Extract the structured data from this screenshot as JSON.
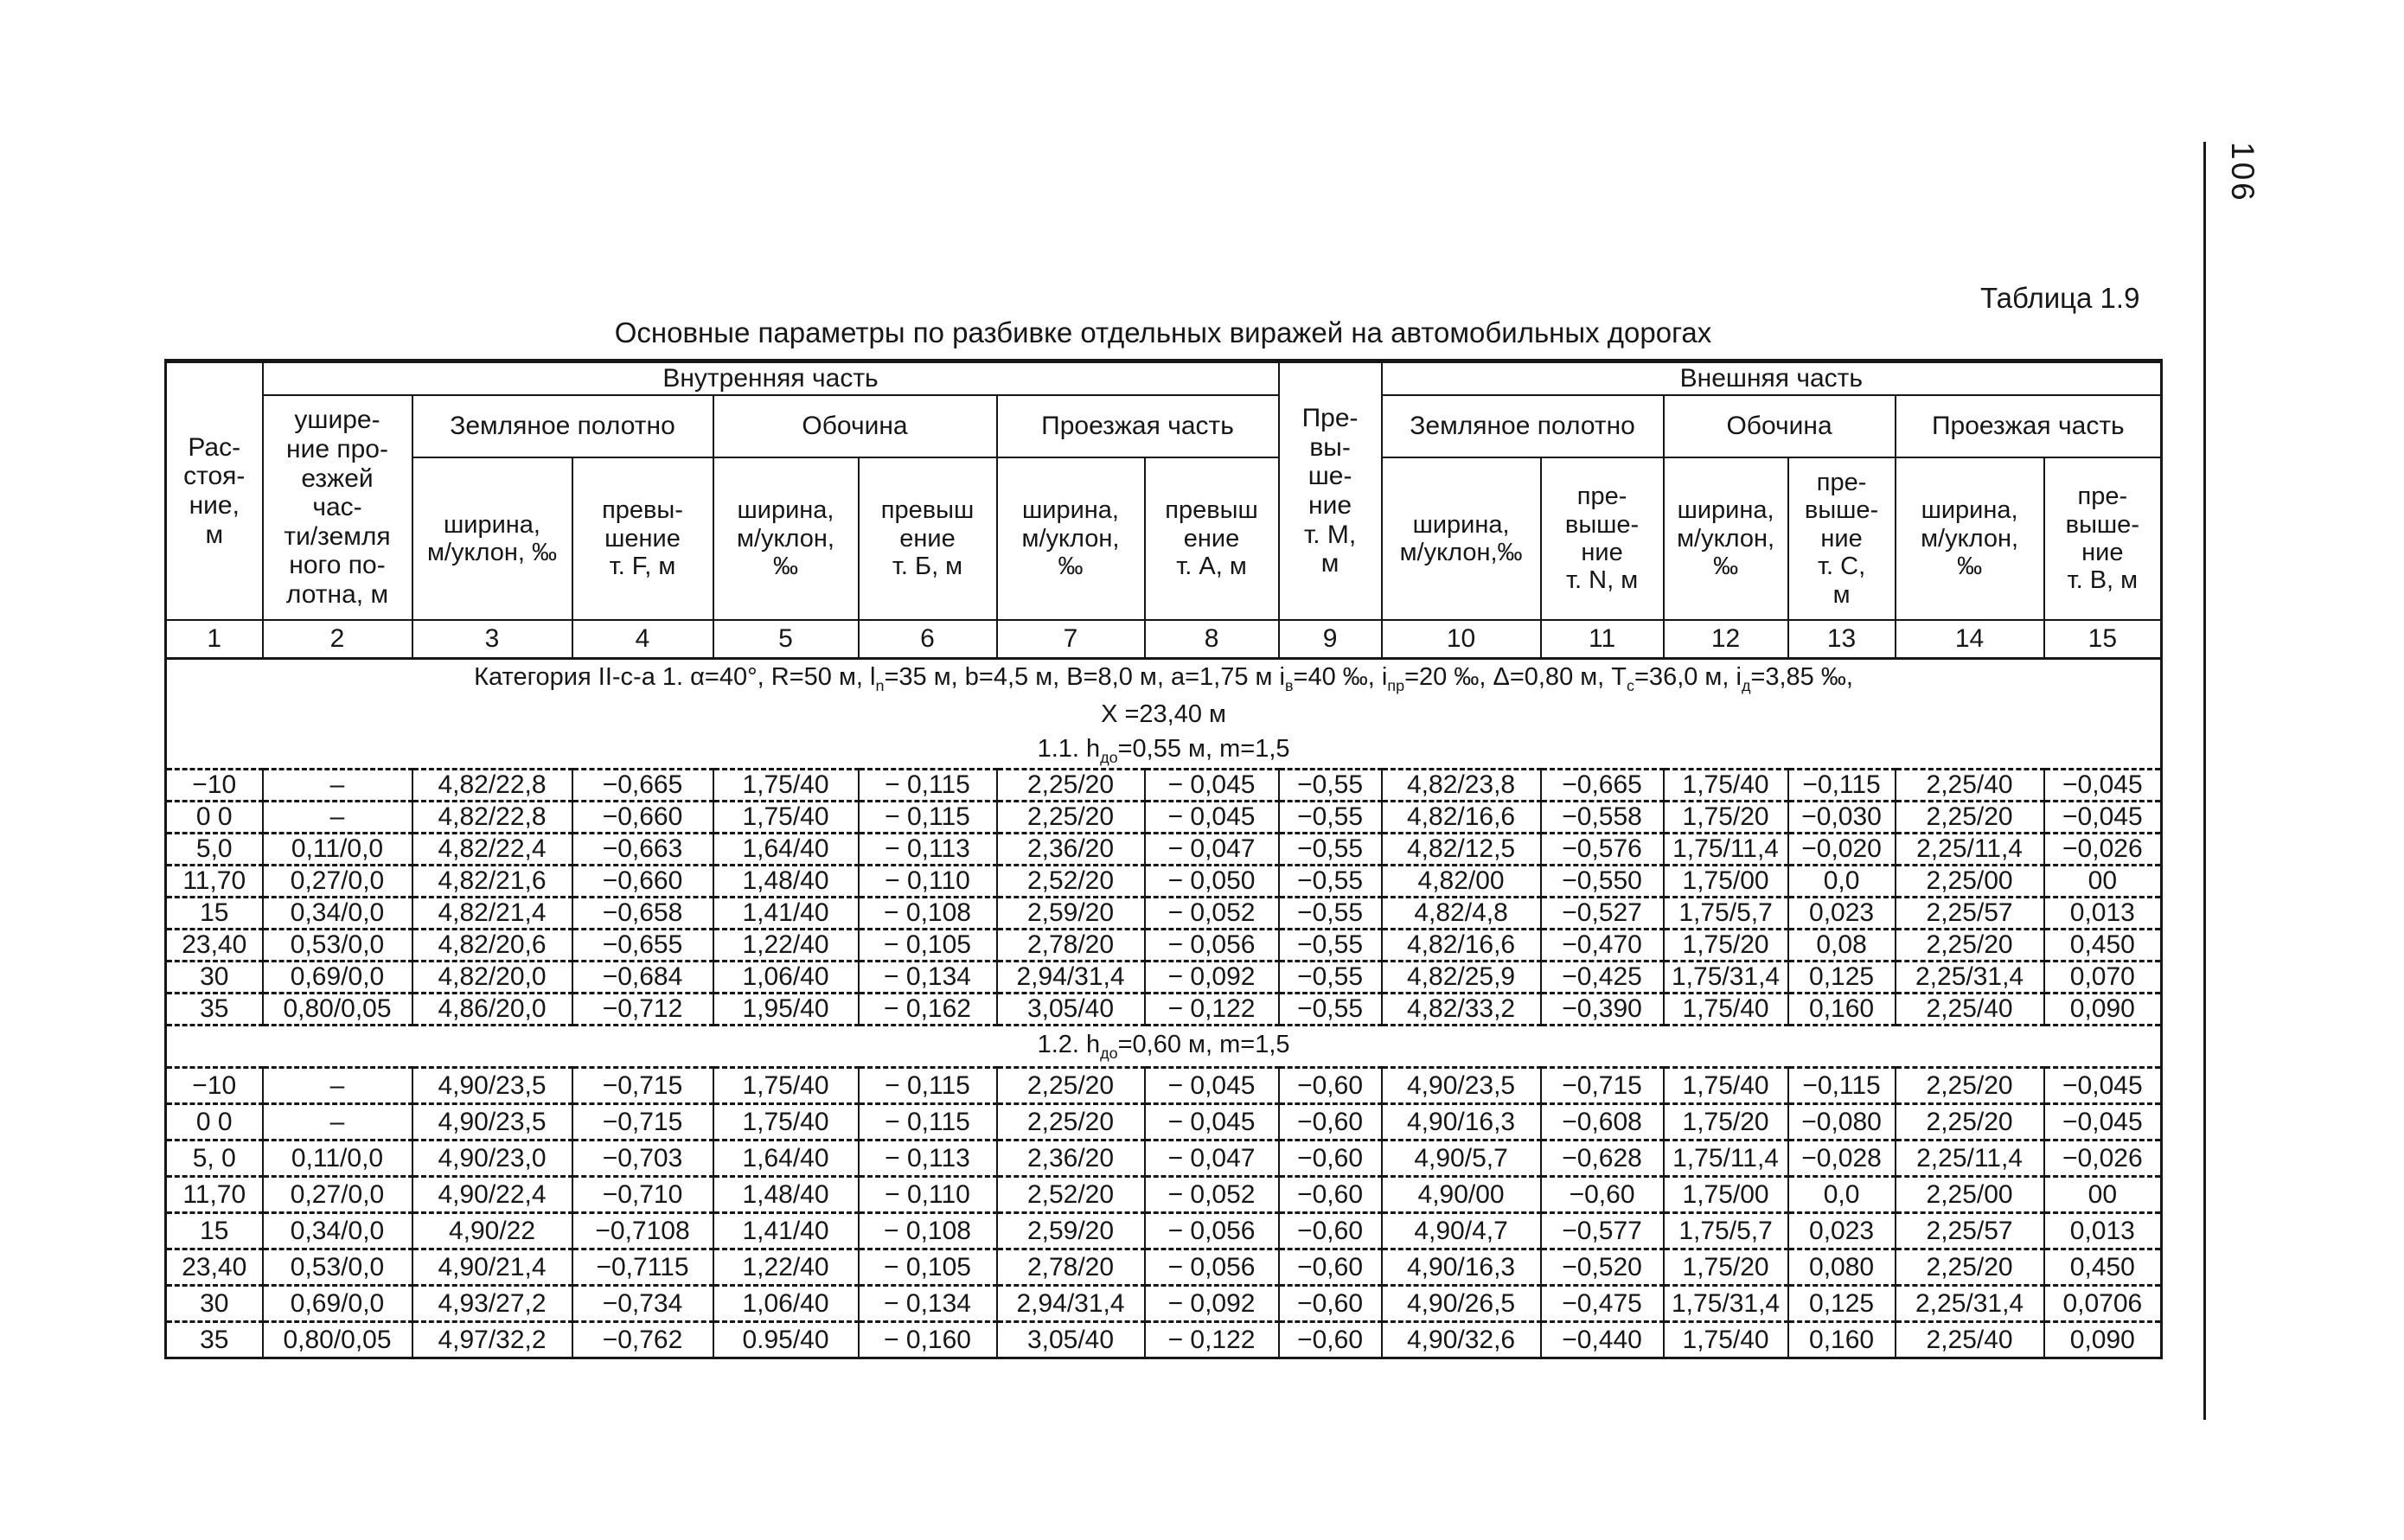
{
  "page_number": "106",
  "caption": "Таблица 1.9",
  "title": "Основные параметры по разбивке отдельных виражей на автомобильных дорогах",
  "table": {
    "header": {
      "col1": "Рас-\nстоя-\nние,\nм",
      "col2": "ушире-\nние про-\nезжей\nчас-\nти/земля\nного по-\nлотна, м",
      "col9": "Пре-\nвы-\nше-\nние\nт. М,\nм",
      "inner_part": "Внутренняя часть",
      "outer_part": "Внешняя часть",
      "groups": [
        "Земляное полотно",
        "Обочина",
        "Проезжая часть",
        "Земляное полотно",
        "Обочина",
        "Проезжая часть"
      ],
      "subs": [
        "ширина,\nм/уклон, ‰",
        "превы-\nшение\nт. F, м",
        "ширина,\nм/уклон,\n‰",
        "превыш\nение\nт. Б, м",
        "ширина,\nм/уклон,\n‰",
        "превыш\nение\nт. А, м",
        "ширина,\nм/уклон,‰",
        "пре-\nвыше-\nние\nт. N, м",
        "ширина,\nм/уклон,\n‰",
        "пре-\nвыше-\nние\nт. С,\nм",
        "ширина,\nм/уклон,\n‰",
        "пре-\nвыше-\nние\nт. В, м"
      ],
      "nums": [
        "1",
        "2",
        "3",
        "4",
        "5",
        "6",
        "7",
        "8",
        "9",
        "10",
        "11",
        "12",
        "13",
        "14",
        "15"
      ]
    },
    "note": {
      "line1_segments": [
        {
          "t": "Категория II-с-а  1. α=40°, R=50 м, l"
        },
        {
          "t": "n",
          "sub": true
        },
        {
          "t": "=35 м, b=4,5 м, В=8,0 м, а=1,75 м i"
        },
        {
          "t": "в",
          "sub": true
        },
        {
          "t": "=40 ‰, i"
        },
        {
          "t": "пр",
          "sub": true
        },
        {
          "t": "=20 ‰, Δ=0,80 м, Т"
        },
        {
          "t": "с",
          "sub": true
        },
        {
          "t": "=36,0 м, i"
        },
        {
          "t": "д",
          "sub": true
        },
        {
          "t": "=3,85 ‰,"
        }
      ],
      "line2": "Х =23,40 м",
      "line3_segments": [
        {
          "t": "1.1. h"
        },
        {
          "t": "до",
          "sub": true
        },
        {
          "t": "=0,55 м, m=1,5"
        }
      ]
    },
    "sections": [
      {
        "rows": [
          [
            "−10",
            "–",
            "4,82/22,8",
            "−0,665",
            "1,75/40",
            "− 0,115",
            "2,25/20",
            "− 0,045",
            "−0,55",
            "4,82/23,8",
            "−0,665",
            "1,75/40",
            "−0,115",
            "2,25/40",
            "−0,045"
          ],
          [
            "0 0",
            "–",
            "4,82/22,8",
            "−0,660",
            "1,75/40",
            "− 0,115",
            "2,25/20",
            "− 0,045",
            "−0,55",
            "4,82/16,6",
            "−0,558",
            "1,75/20",
            "−0,030",
            "2,25/20",
            "−0,045"
          ],
          [
            "5,0",
            "0,11/0,0",
            "4,82/22,4",
            "−0,663",
            "1,64/40",
            "− 0,113",
            "2,36/20",
            "− 0,047",
            "−0,55",
            "4,82/12,5",
            "−0,576",
            "1,75/11,4",
            "−0,020",
            "2,25/11,4",
            "−0,026"
          ],
          [
            "11,70",
            "0,27/0,0",
            "4,82/21,6",
            "−0,660",
            "1,48/40",
            "− 0,110",
            "2,52/20",
            "− 0,050",
            "−0,55",
            "4,82/00",
            "−0,550",
            "1,75/00",
            "0,0",
            "2,25/00",
            "00"
          ],
          [
            "15",
            "0,34/0,0",
            "4,82/21,4",
            "−0,658",
            "1,41/40",
            "− 0,108",
            "2,59/20",
            "− 0,052",
            "−0,55",
            "4,82/4,8",
            "−0,527",
            "1,75/5,7",
            "0,023",
            "2,25/57",
            "0,013"
          ],
          [
            "23,40",
            "0,53/0,0",
            "4,82/20,6",
            "−0,655",
            "1,22/40",
            "− 0,105",
            "2,78/20",
            "− 0,056",
            "−0,55",
            "4,82/16,6",
            "−0,470",
            "1,75/20",
            "0,08",
            "2,25/20",
            "0,450"
          ],
          [
            "30",
            "0,69/0,0",
            "4,82/20,0",
            "−0,684",
            "1,06/40",
            "− 0,134",
            "2,94/31,4",
            "− 0,092",
            "−0,55",
            "4,82/25,9",
            "−0,425",
            "1,75/31,4",
            "0,125",
            "2,25/31,4",
            "0,070"
          ],
          [
            "35",
            "0,80/0,05",
            "4,86/20,0",
            "−0,712",
            "1,95/40",
            "− 0,162",
            "3,05/40",
            "− 0,122",
            "−0,55",
            "4,82/33,2",
            "−0,390",
            "1,75/40",
            "0,160",
            "2,25/40",
            "0,090"
          ]
        ]
      },
      {
        "title_segments": [
          {
            "t": "1.2. h"
          },
          {
            "t": "до",
            "sub": true
          },
          {
            "t": "=0,60 м, m=1,5"
          }
        ],
        "rows": [
          [
            "−10",
            "–",
            "4,90/23,5",
            "−0,715",
            "1,75/40",
            "− 0,115",
            "2,25/20",
            "− 0,045",
            "−0,60",
            "4,90/23,5",
            "−0,715",
            "1,75/40",
            "−0,115",
            "2,25/20",
            "−0,045"
          ],
          [
            "0 0",
            "–",
            "4,90/23,5",
            "−0,715",
            "1,75/40",
            "− 0,115",
            "2,25/20",
            "− 0,045",
            "−0,60",
            "4,90/16,3",
            "−0,608",
            "1,75/20",
            "−0,080",
            "2,25/20",
            "−0,045"
          ],
          [
            "5, 0",
            "0,11/0,0",
            "4,90/23,0",
            "−0,703",
            "1,64/40",
            "− 0,113",
            "2,36/20",
            "− 0,047",
            "−0,60",
            "4,90/5,7",
            "−0,628",
            "1,75/11,4",
            "−0,028",
            "2,25/11,4",
            "−0,026"
          ],
          [
            "11,70",
            "0,27/0,0",
            "4,90/22,4",
            "−0,710",
            "1,48/40",
            "− 0,110",
            "2,52/20",
            "− 0,052",
            "−0,60",
            "4,90/00",
            "−0,60",
            "1,75/00",
            "0,0",
            "2,25/00",
            "00"
          ],
          [
            "15",
            "0,34/0,0",
            "4,90/22",
            "−0,7108",
            "1,41/40",
            "− 0,108",
            "2,59/20",
            "− 0,056",
            "−0,60",
            "4,90/4,7",
            "−0,577",
            "1,75/5,7",
            "0,023",
            "2,25/57",
            "0,013"
          ],
          [
            "23,40",
            "0,53/0,0",
            "4,90/21,4",
            "−0,7115",
            "1,22/40",
            "− 0,105",
            "2,78/20",
            "− 0,056",
            "−0,60",
            "4,90/16,3",
            "−0,520",
            "1,75/20",
            "0,080",
            "2,25/20",
            "0,450"
          ],
          [
            "30",
            "0,69/0,0",
            "4,93/27,2",
            "−0,734",
            "1,06/40",
            "− 0,134",
            "2,94/31,4",
            "− 0,092",
            "−0,60",
            "4,90/26,5",
            "−0,475",
            "1,75/31,4",
            "0,125",
            "2,25/31,4",
            "0,0706"
          ],
          [
            "35",
            "0,80/0,05",
            "4,97/32,2",
            "−0,762",
            "0.95/40",
            "− 0,160",
            "3,05/40",
            "− 0,122",
            "−0,60",
            "4,90/32,6",
            "−0,440",
            "1,75/40",
            "0,160",
            "2,25/40",
            "0,090"
          ]
        ]
      }
    ]
  }
}
